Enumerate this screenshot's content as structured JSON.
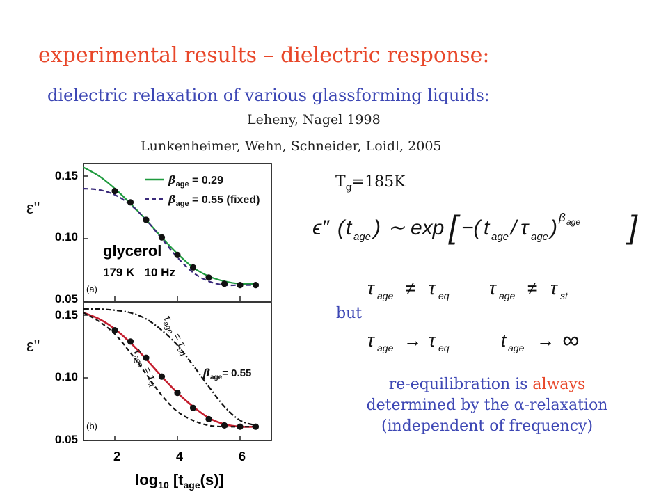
{
  "slide": {
    "title": "experimental results – dielectric response:",
    "subtitle": "dielectric relaxation of various glassforming liquids:",
    "ref1": "Leheny, Nagel 1998",
    "ref2": "Lunkenheimer, Wehn, Schneider, Loidl, 2005",
    "tg_prefix": "T",
    "tg_sub": "g",
    "tg_value": "=185K",
    "but": "but",
    "conclusion_a": "re-equilibration is ",
    "conclusion_hl": "always",
    "conclusion_b": "determined by the α-relaxation (independent of frequency)"
  },
  "equations": {
    "main": "ε″(t_age) ~ exp[−(t_age/τ_age)^β_age]",
    "neq": "τ_age ≠ τ_eq    τ_age ≠ τ_st",
    "limit": "τ_age → τ_eq    t_age → ∞"
  },
  "colors": {
    "title": "#e8472a",
    "accent_blue": "#3d47b4",
    "fit_green": "#1f9a3e",
    "fit_purple": "#3a2a7a",
    "fit_red": "#c41e2e"
  },
  "chart_data": [
    {
      "type": "scatter",
      "panel": "(a)",
      "ylabel": "ε\"",
      "ylim": [
        0.05,
        0.16
      ],
      "xlim": [
        1,
        7
      ],
      "yticks": [
        "0.15",
        "0.10",
        "0.05"
      ],
      "annotations": [
        "glycerol",
        "179 K   10 Hz"
      ],
      "legend": [
        {
          "name": "βage = 0.29",
          "style": "solid",
          "color": "#1f9a3e"
        },
        {
          "name": "βage = 0.55 (fixed)",
          "style": "dashed",
          "color": "#3a2a7a"
        }
      ],
      "points": {
        "x": [
          2.0,
          2.5,
          3.0,
          3.5,
          4.0,
          4.5,
          5.0,
          5.5,
          6.0,
          6.5
        ],
        "y": [
          0.138,
          0.129,
          0.115,
          0.101,
          0.087,
          0.077,
          0.069,
          0.064,
          0.063,
          0.063
        ]
      },
      "series": [
        {
          "name": "βage = 0.29",
          "x": [
            1.0,
            1.5,
            2.0,
            2.5,
            3.0,
            3.5,
            4.0,
            4.5,
            5.0,
            5.5,
            6.0,
            6.5
          ],
          "y": [
            0.157,
            0.15,
            0.14,
            0.128,
            0.115,
            0.101,
            0.088,
            0.077,
            0.07,
            0.066,
            0.064,
            0.064
          ]
        },
        {
          "name": "βage = 0.55 (fixed)",
          "x": [
            1.0,
            1.5,
            2.0,
            2.5,
            3.0,
            3.5,
            4.0,
            4.5,
            5.0,
            5.5,
            6.0,
            6.5
          ],
          "y": [
            0.14,
            0.139,
            0.135,
            0.127,
            0.115,
            0.1,
            0.085,
            0.073,
            0.066,
            0.063,
            0.063,
            0.063
          ]
        }
      ]
    },
    {
      "type": "scatter",
      "panel": "(b)",
      "ylabel": "ε\"",
      "xlabel": "log10 [tage(s)]",
      "ylim": [
        0.05,
        0.16
      ],
      "xlim": [
        1,
        7
      ],
      "xticks": [
        "2",
        "4",
        "6"
      ],
      "yticks": [
        "0.15",
        "0.10",
        "0.05"
      ],
      "annotations": [
        "τage = τeq",
        "τage = τst",
        "βage = 0.55"
      ],
      "points": {
        "x": [
          2.0,
          2.5,
          3.0,
          3.5,
          4.0,
          4.5,
          5.0,
          5.5,
          6.0,
          6.5
        ],
        "y": [
          0.138,
          0.129,
          0.116,
          0.101,
          0.088,
          0.076,
          0.067,
          0.062,
          0.061,
          0.061
        ]
      },
      "series": [
        {
          "name": "βage = 0.55",
          "x": [
            1.0,
            1.5,
            2.0,
            2.5,
            3.0,
            3.5,
            4.0,
            4.5,
            5.0,
            5.5,
            6.0,
            6.5
          ],
          "y": [
            0.152,
            0.147,
            0.139,
            0.128,
            0.115,
            0.101,
            0.088,
            0.077,
            0.068,
            0.063,
            0.061,
            0.061
          ]
        },
        {
          "name": "τage = τeq",
          "x": [
            1.0,
            1.5,
            2.0,
            2.5,
            3.0,
            3.5,
            4.0,
            4.5,
            5.0,
            5.5,
            6.0,
            6.5
          ],
          "y": [
            0.155,
            0.155,
            0.154,
            0.152,
            0.147,
            0.138,
            0.126,
            0.11,
            0.093,
            0.077,
            0.066,
            0.062
          ]
        },
        {
          "name": "τage = τst",
          "x": [
            1.0,
            1.5,
            2.0,
            2.5,
            3.0,
            3.5,
            4.0,
            4.5,
            5.0,
            5.5,
            6.0,
            6.5
          ],
          "y": [
            0.152,
            0.145,
            0.135,
            0.12,
            0.103,
            0.086,
            0.073,
            0.066,
            0.062,
            0.061,
            0.061,
            0.061
          ]
        }
      ]
    }
  ]
}
